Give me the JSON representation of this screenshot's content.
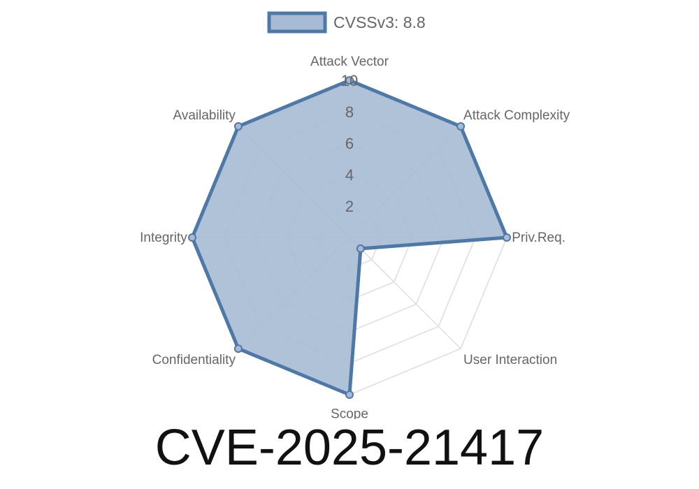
{
  "chart_data": {
    "type": "radar",
    "legend": {
      "label": "CVSSv3: 8.8",
      "placement": "top"
    },
    "axes": [
      "Attack Vector",
      "Attack Complexity",
      "Priv.Req.",
      "User Interaction",
      "Scope",
      "Confidentiality",
      "Integrity",
      "Availability"
    ],
    "series": [
      {
        "name": "CVSSv3: 8.8",
        "values": [
          10,
          10,
          10,
          1,
          10,
          10,
          10,
          10
        ]
      }
    ],
    "rlim": [
      0,
      10
    ],
    "ticks": [
      2,
      4,
      6,
      8,
      10
    ],
    "grid": true,
    "colors": {
      "line": "#4e79a7",
      "fill": "#a7bbd4",
      "grid": "#dddddd"
    }
  },
  "title": "CVE-2025-21417"
}
